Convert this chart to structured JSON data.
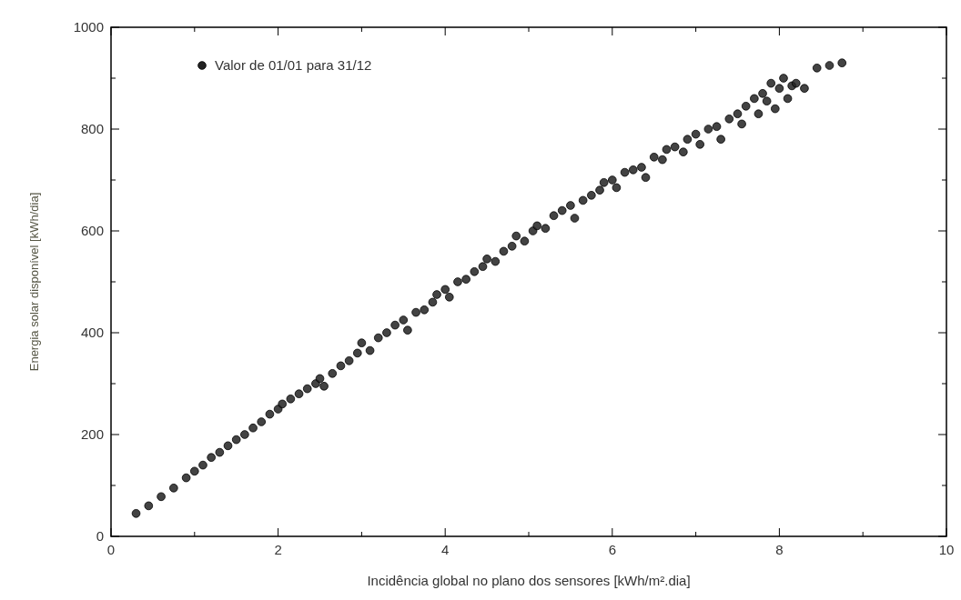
{
  "chart_data": {
    "type": "scatter",
    "xlabel": "Incidência global no plano dos sensores [kWh/m².dia]",
    "ylabel": "Energia solar disponível [kWh/dia]",
    "xlim": [
      0,
      10
    ],
    "ylim": [
      0,
      1000
    ],
    "xticks": [
      0,
      {
        "value": 1,
        "label": null
      },
      2,
      {
        "value": 3,
        "label": null
      },
      4,
      {
        "value": 5,
        "label": null
      },
      6,
      {
        "value": 7,
        "label": null
      },
      8,
      {
        "value": 9,
        "label": null
      },
      10
    ],
    "yticks": [
      0,
      {
        "value": 100,
        "label": null
      },
      200,
      {
        "value": 300,
        "label": null
      },
      400,
      {
        "value": 500,
        "label": null
      },
      600,
      {
        "value": 700,
        "label": null
      },
      800,
      {
        "value": 900,
        "label": null
      },
      1000
    ],
    "legend": "top left",
    "marker": "circle",
    "series": [
      {
        "name": "Valor de 01/01 para 31/12",
        "color": "#222222",
        "x": [
          0.3,
          0.45,
          0.6,
          0.75,
          0.9,
          1.0,
          1.1,
          1.2,
          1.3,
          1.4,
          1.5,
          1.6,
          1.7,
          1.8,
          1.9,
          2.0,
          2.05,
          2.15,
          2.25,
          2.35,
          2.45,
          2.5,
          2.55,
          2.65,
          2.75,
          2.85,
          2.95,
          3.0,
          3.1,
          3.2,
          3.3,
          3.4,
          3.5,
          3.55,
          3.65,
          3.75,
          3.85,
          3.9,
          4.0,
          4.05,
          4.15,
          4.25,
          4.35,
          4.45,
          4.5,
          4.6,
          4.7,
          4.8,
          4.85,
          4.95,
          5.05,
          5.1,
          5.2,
          5.3,
          5.4,
          5.5,
          5.55,
          5.65,
          5.75,
          5.85,
          5.9,
          6.0,
          6.05,
          6.15,
          6.25,
          6.35,
          6.4,
          6.5,
          6.6,
          6.65,
          6.75,
          6.85,
          6.9,
          7.0,
          7.05,
          7.15,
          7.25,
          7.3,
          7.4,
          7.5,
          7.55,
          7.6,
          7.7,
          7.75,
          7.8,
          7.85,
          7.9,
          7.95,
          8.0,
          8.05,
          8.1,
          8.15,
          8.2,
          8.3,
          8.45,
          8.6,
          8.75
        ],
        "values": [
          45,
          60,
          78,
          95,
          115,
          128,
          140,
          155,
          165,
          178,
          190,
          200,
          213,
          225,
          240,
          250,
          260,
          270,
          280,
          290,
          300,
          310,
          295,
          320,
          335,
          345,
          360,
          380,
          365,
          390,
          400,
          415,
          425,
          405,
          440,
          445,
          460,
          475,
          485,
          470,
          500,
          505,
          520,
          530,
          545,
          540,
          560,
          570,
          590,
          580,
          600,
          610,
          605,
          630,
          640,
          650,
          625,
          660,
          670,
          680,
          695,
          700,
          685,
          715,
          720,
          725,
          705,
          745,
          740,
          760,
          765,
          755,
          780,
          790,
          770,
          800,
          805,
          780,
          820,
          830,
          810,
          845,
          860,
          830,
          870,
          855,
          890,
          840,
          880,
          900,
          860,
          885,
          890,
          880,
          920,
          925,
          930
        ]
      }
    ]
  }
}
